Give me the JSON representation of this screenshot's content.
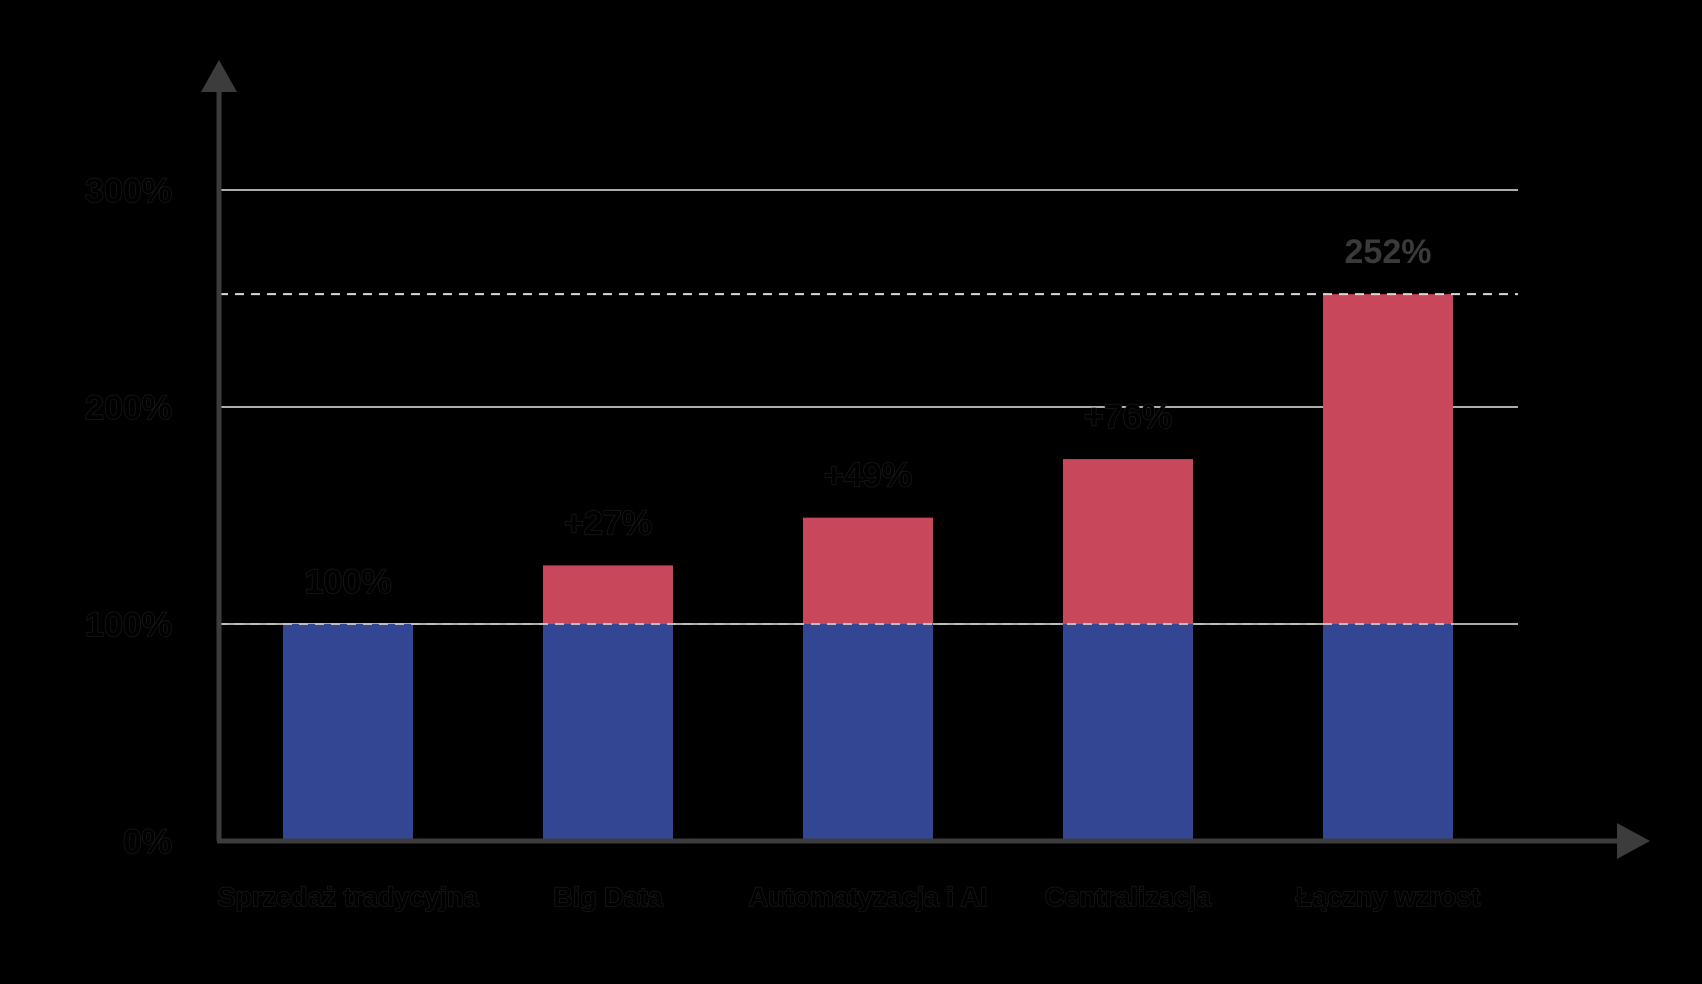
{
  "chart_data": {
    "type": "bar",
    "stacked": true,
    "title": "",
    "xlabel": "",
    "ylabel": "",
    "ylim": [
      0,
      300
    ],
    "yticks": [
      "0%",
      "100%",
      "200%",
      "300%"
    ],
    "categories": [
      "Sprzedaż tradycyjna",
      "Big Data",
      "Automatyzacja i AI",
      "Centralizacja",
      "Łączny wzrost"
    ],
    "series": [
      {
        "values": [
          100,
          100,
          100,
          100,
          100
        ],
        "color": "#334693"
      },
      {
        "values": [
          0,
          27,
          49,
          76,
          152
        ],
        "color": "#c9475b"
      }
    ],
    "data_labels": [
      "100%",
      "+27%",
      "+49%",
      "+76%",
      "252%"
    ],
    "reference_lines": [
      100,
      252
    ],
    "grid": true,
    "legend": "none"
  }
}
